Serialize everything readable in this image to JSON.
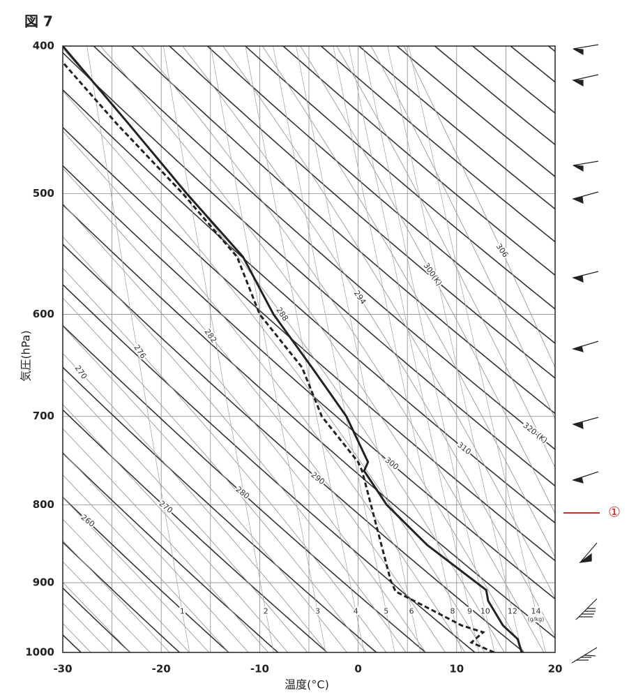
{
  "chart_data": {
    "type": "emagram",
    "title": "図 7",
    "xlabel": "温度(°C)",
    "ylabel": "気圧(hPa)",
    "xlim": [
      -30,
      20
    ],
    "ylim": [
      400,
      1000
    ],
    "ylog": true,
    "xticks": [
      -30,
      -20,
      -10,
      0,
      10,
      20
    ],
    "yticks": [
      400,
      500,
      600,
      700,
      800,
      900,
      1000
    ],
    "x_gridlines": [
      -30,
      -25,
      -20,
      -15,
      -10,
      -5,
      0,
      5,
      10,
      15,
      20
    ],
    "dry_adiabats": [
      240,
      245,
      250,
      255,
      260,
      265,
      270,
      275,
      280,
      285,
      290,
      295,
      300,
      305,
      310,
      315,
      320,
      325,
      330,
      335,
      340,
      345,
      350,
      355,
      360,
      365,
      370,
      375,
      380,
      385
    ],
    "dry_adiabat_labels": [
      260,
      270,
      280,
      290,
      300,
      310,
      {
        "value": 320,
        "label": "320 (K)"
      }
    ],
    "moist_adiabats": [
      246,
      248,
      250,
      252,
      254,
      256,
      258,
      260,
      262,
      264,
      266,
      268,
      270,
      272,
      274,
      276,
      278,
      280,
      282,
      284,
      286,
      288,
      290,
      292,
      294,
      296,
      298,
      300,
      302,
      304,
      306
    ],
    "moist_adiabat_labels": [
      270,
      276,
      282,
      288,
      294,
      {
        "value": 300,
        "label": "300(K)"
      },
      306
    ],
    "mixing_ratios": [
      1,
      2,
      3,
      4,
      5,
      6,
      8,
      9,
      10,
      12,
      14
    ],
    "mixing_ratio_unit": "(g/kg)",
    "series": [
      {
        "color": "#222222",
        "dashed": false,
        "x": [
          16.6,
          16.2,
          14.7,
          13.2,
          13.0,
          7.0,
          2.9,
          0.6,
          1.0,
          -1.2,
          -4.7,
          -8.6,
          -11.7,
          -17.4,
          -23.3,
          -30
        ],
        "y": [
          1000,
          980,
          960,
          925,
          910,
          850,
          800,
          760,
          750,
          700,
          650,
          600,
          550,
          500,
          450,
          400
        ]
      },
      {
        "color": "#222222",
        "dashed": true,
        "x": [
          13.8,
          11.5,
          12.7,
          10.5,
          7.5,
          3.8,
          3.3,
          0.4,
          0.0,
          -3.7,
          -5.7,
          -10.0,
          -12.3,
          -17.8,
          -24.5,
          -30
        ],
        "y": [
          1000,
          985,
          970,
          960,
          938,
          912,
          897,
          760,
          750,
          700,
          650,
          600,
          550,
          500,
          450,
          410
        ]
      }
    ],
    "annotation": {
      "label": "①",
      "pressure": 810,
      "color": "#d62020"
    }
  }
}
